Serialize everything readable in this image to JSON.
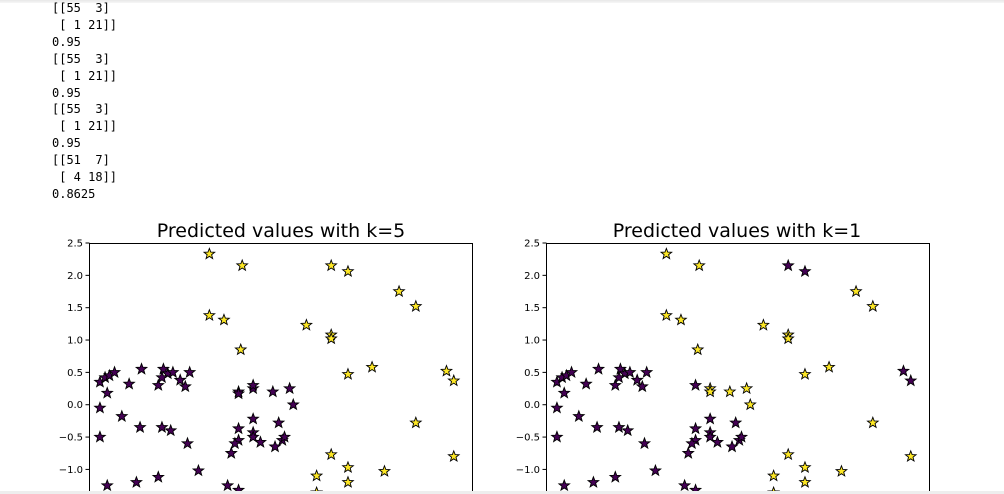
{
  "output_lines": [
    "[[55  3]",
    " [ 1 21]]",
    "0.95",
    "[[55  3]",
    " [ 1 21]]",
    "0.95",
    "[[55  3]",
    " [ 1 21]]",
    "0.95",
    "[[51  7]",
    " [ 4 18]]",
    "0.8625"
  ],
  "colors": {
    "class0": "#440154",
    "class1": "#fde725",
    "edge": "#000000"
  },
  "chart_data": [
    {
      "type": "scatter",
      "title": "Predicted values with k=5",
      "xlim": [
        -2.7,
        2.55
      ],
      "ylim": [
        -1.38,
        2.5
      ],
      "yticks": [
        "2.5",
        "2.0",
        "1.5",
        "1.0",
        "0.5",
        "0.0",
        "−0.5",
        "−1.0"
      ],
      "yticks_values": [
        2.5,
        2.0,
        1.5,
        1.0,
        0.5,
        0.0,
        -0.5,
        -1.0
      ],
      "marker": "star",
      "points": [
        [
          -2.55,
          0.35
        ],
        [
          -2.48,
          0.42
        ],
        [
          -2.42,
          0.45
        ],
        [
          -2.35,
          0.5
        ],
        [
          -2.55,
          -0.05
        ],
        [
          -2.45,
          0.18
        ],
        [
          -2.15,
          0.32
        ],
        [
          -1.98,
          0.55
        ],
        [
          -1.75,
          0.3
        ],
        [
          -1.68,
          0.55
        ],
        [
          -1.62,
          0.48
        ],
        [
          -1.55,
          0.5
        ],
        [
          -1.45,
          0.38
        ],
        [
          -1.38,
          0.28
        ],
        [
          -1.32,
          0.5
        ],
        [
          -1.7,
          0.42
        ],
        [
          -2.25,
          -0.18
        ],
        [
          -2.0,
          -0.35
        ],
        [
          -1.7,
          -0.35
        ],
        [
          -1.58,
          -0.4
        ],
        [
          -1.35,
          -0.6
        ],
        [
          -1.2,
          -1.02
        ],
        [
          -1.75,
          -1.12
        ],
        [
          -2.05,
          -1.2
        ],
        [
          -2.45,
          -1.25
        ],
        [
          -2.55,
          -0.5
        ],
        [
          -0.65,
          0.2
        ],
        [
          -0.45,
          0.25
        ],
        [
          -0.45,
          0.3
        ],
        [
          -0.18,
          0.2
        ],
        [
          0.05,
          0.25
        ],
        [
          0.1,
          0.0
        ],
        [
          -0.65,
          0.17
        ],
        [
          -0.65,
          -0.37
        ],
        [
          -0.45,
          -0.22
        ],
        [
          -0.45,
          -0.43
        ],
        [
          -0.45,
          -0.5
        ],
        [
          -0.35,
          -0.58
        ],
        [
          -0.65,
          -0.55
        ],
        [
          -0.7,
          -0.6
        ],
        [
          -0.75,
          -0.75
        ],
        [
          -0.1,
          -0.28
        ],
        [
          -0.05,
          -0.55
        ],
        [
          -0.02,
          -0.5
        ],
        [
          -0.15,
          -0.65
        ],
        [
          -0.65,
          -1.32
        ],
        [
          -0.8,
          -1.25
        ],
        [
          -1.05,
          2.33
        ],
        [
          -0.6,
          2.15
        ],
        [
          0.62,
          2.15
        ],
        [
          0.85,
          2.06
        ],
        [
          1.55,
          1.75
        ],
        [
          1.78,
          1.52
        ],
        [
          -1.05,
          1.38
        ],
        [
          -0.85,
          1.31
        ],
        [
          -0.62,
          0.85
        ],
        [
          0.28,
          1.23
        ],
        [
          0.62,
          1.08
        ],
        [
          0.62,
          1.02
        ],
        [
          0.85,
          0.47
        ],
        [
          1.18,
          0.58
        ],
        [
          2.2,
          0.52
        ],
        [
          2.3,
          0.37
        ],
        [
          1.78,
          -0.28
        ],
        [
          2.3,
          -0.8
        ],
        [
          0.62,
          -0.77
        ],
        [
          0.85,
          -0.97
        ],
        [
          0.85,
          -1.2
        ],
        [
          1.35,
          -1.03
        ],
        [
          0.42,
          -1.1
        ],
        [
          0.42,
          -1.36
        ]
      ],
      "classes": [
        0,
        0,
        0,
        0,
        0,
        0,
        0,
        0,
        0,
        0,
        0,
        0,
        0,
        0,
        0,
        0,
        0,
        0,
        0,
        0,
        0,
        0,
        0,
        0,
        0,
        0,
        0,
        0,
        0,
        0,
        0,
        0,
        0,
        0,
        0,
        0,
        0,
        0,
        0,
        0,
        0,
        0,
        0,
        0,
        0,
        0,
        0,
        1,
        1,
        1,
        1,
        1,
        1,
        1,
        1,
        1,
        1,
        1,
        1,
        1,
        1,
        1,
        1,
        1,
        1,
        1,
        1,
        1,
        1,
        1,
        1
      ]
    },
    {
      "type": "scatter",
      "title": "Predicted values with k=1",
      "xlim": [
        -2.7,
        2.55
      ],
      "ylim": [
        -1.38,
        2.5
      ],
      "yticks": [
        "2.5",
        "2.0",
        "1.5",
        "1.0",
        "0.5",
        "0.0",
        "−0.5",
        "−1.0"
      ],
      "yticks_values": [
        2.5,
        2.0,
        1.5,
        1.0,
        0.5,
        0.0,
        -0.5,
        -1.0
      ],
      "marker": "star",
      "points": [
        [
          -2.55,
          0.35
        ],
        [
          -2.48,
          0.42
        ],
        [
          -2.42,
          0.45
        ],
        [
          -2.35,
          0.5
        ],
        [
          -2.55,
          -0.05
        ],
        [
          -2.45,
          0.18
        ],
        [
          -2.15,
          0.32
        ],
        [
          -1.98,
          0.55
        ],
        [
          -1.75,
          0.3
        ],
        [
          -1.68,
          0.55
        ],
        [
          -1.62,
          0.48
        ],
        [
          -1.55,
          0.5
        ],
        [
          -1.45,
          0.38
        ],
        [
          -1.38,
          0.28
        ],
        [
          -1.32,
          0.5
        ],
        [
          -1.7,
          0.42
        ],
        [
          -2.25,
          -0.18
        ],
        [
          -2.0,
          -0.35
        ],
        [
          -1.7,
          -0.35
        ],
        [
          -1.58,
          -0.4
        ],
        [
          -1.35,
          -0.6
        ],
        [
          -1.2,
          -1.02
        ],
        [
          -1.75,
          -1.12
        ],
        [
          -2.05,
          -1.2
        ],
        [
          -2.45,
          -1.25
        ],
        [
          -2.55,
          -0.5
        ],
        [
          -0.65,
          0.3
        ],
        [
          -0.65,
          -0.37
        ],
        [
          -0.45,
          -0.22
        ],
        [
          -0.45,
          -0.43
        ],
        [
          -0.45,
          -0.5
        ],
        [
          -0.35,
          -0.58
        ],
        [
          -0.65,
          -0.55
        ],
        [
          -0.7,
          -0.6
        ],
        [
          -0.75,
          -0.75
        ],
        [
          -0.1,
          -0.28
        ],
        [
          -0.05,
          -0.55
        ],
        [
          -0.02,
          -0.5
        ],
        [
          -0.15,
          -0.65
        ],
        [
          -0.65,
          -1.32
        ],
        [
          -0.8,
          -1.25
        ],
        [
          0.62,
          2.15
        ],
        [
          0.85,
          2.06
        ],
        [
          2.2,
          0.52
        ],
        [
          2.3,
          0.37
        ],
        [
          -1.05,
          2.33
        ],
        [
          -0.6,
          2.15
        ],
        [
          1.55,
          1.75
        ],
        [
          1.78,
          1.52
        ],
        [
          -1.05,
          1.38
        ],
        [
          -0.85,
          1.31
        ],
        [
          -0.62,
          0.85
        ],
        [
          0.28,
          1.23
        ],
        [
          0.62,
          1.08
        ],
        [
          0.62,
          1.02
        ],
        [
          0.85,
          0.47
        ],
        [
          1.18,
          0.58
        ],
        [
          -0.45,
          0.25
        ],
        [
          -0.18,
          0.2
        ],
        [
          0.05,
          0.25
        ],
        [
          0.1,
          0.0
        ],
        [
          -0.45,
          0.2
        ],
        [
          1.78,
          -0.28
        ],
        [
          2.3,
          -0.8
        ],
        [
          0.62,
          -0.77
        ],
        [
          0.85,
          -0.97
        ],
        [
          0.85,
          -1.2
        ],
        [
          1.35,
          -1.03
        ],
        [
          0.42,
          -1.1
        ],
        [
          0.42,
          -1.36
        ]
      ],
      "classes": [
        0,
        0,
        0,
        0,
        0,
        0,
        0,
        0,
        0,
        0,
        0,
        0,
        0,
        0,
        0,
        0,
        0,
        0,
        0,
        0,
        0,
        0,
        0,
        0,
        0,
        0,
        0,
        0,
        0,
        0,
        0,
        0,
        0,
        0,
        0,
        0,
        0,
        0,
        0,
        0,
        0,
        0,
        0,
        0,
        0,
        1,
        1,
        1,
        1,
        1,
        1,
        1,
        1,
        1,
        1,
        1,
        1,
        1,
        1,
        1,
        1,
        1,
        1,
        1,
        1,
        1,
        1,
        1,
        1,
        1
      ]
    }
  ]
}
